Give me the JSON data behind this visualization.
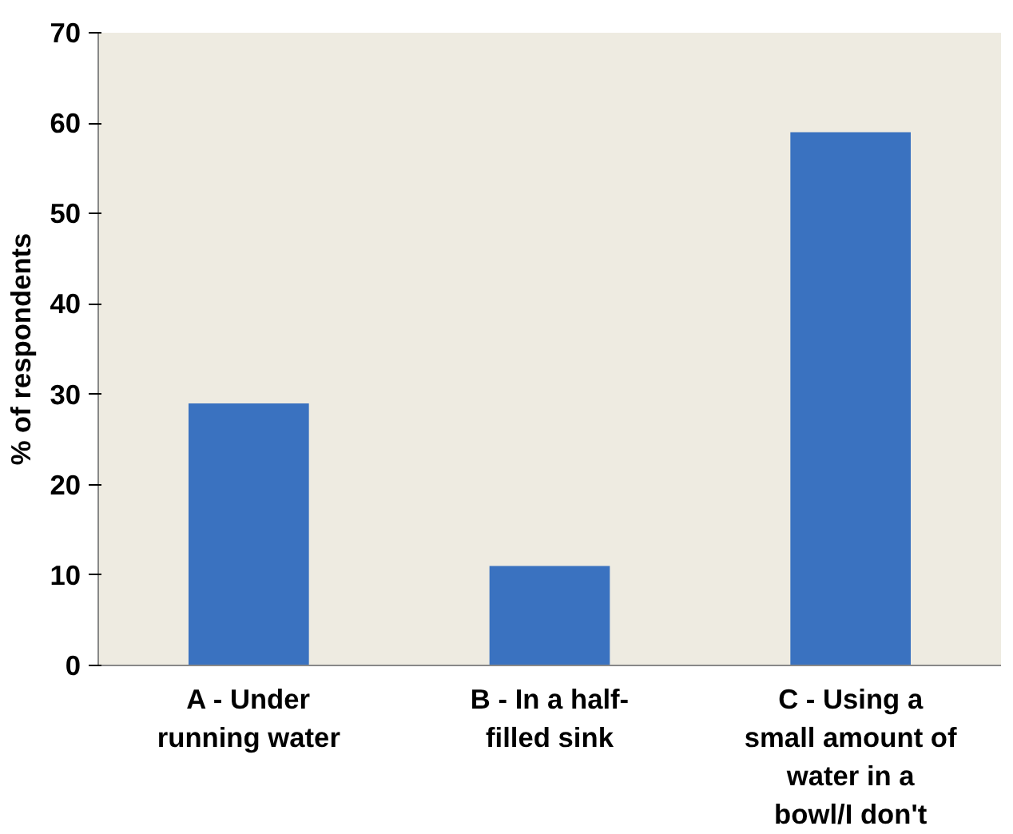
{
  "chart_data": {
    "type": "bar",
    "ylabel": "% of respondents",
    "categories": [
      "A - Under running water",
      "B - In a half-filled sink",
      "C - Using a small amount of water in a bowl/I don't"
    ],
    "values": [
      29,
      11,
      59
    ],
    "color": "#3a72c0",
    "ylim": [
      0,
      70
    ],
    "yticks": [
      0,
      10,
      20,
      30,
      40,
      50,
      60,
      70
    ],
    "grid": false
  }
}
